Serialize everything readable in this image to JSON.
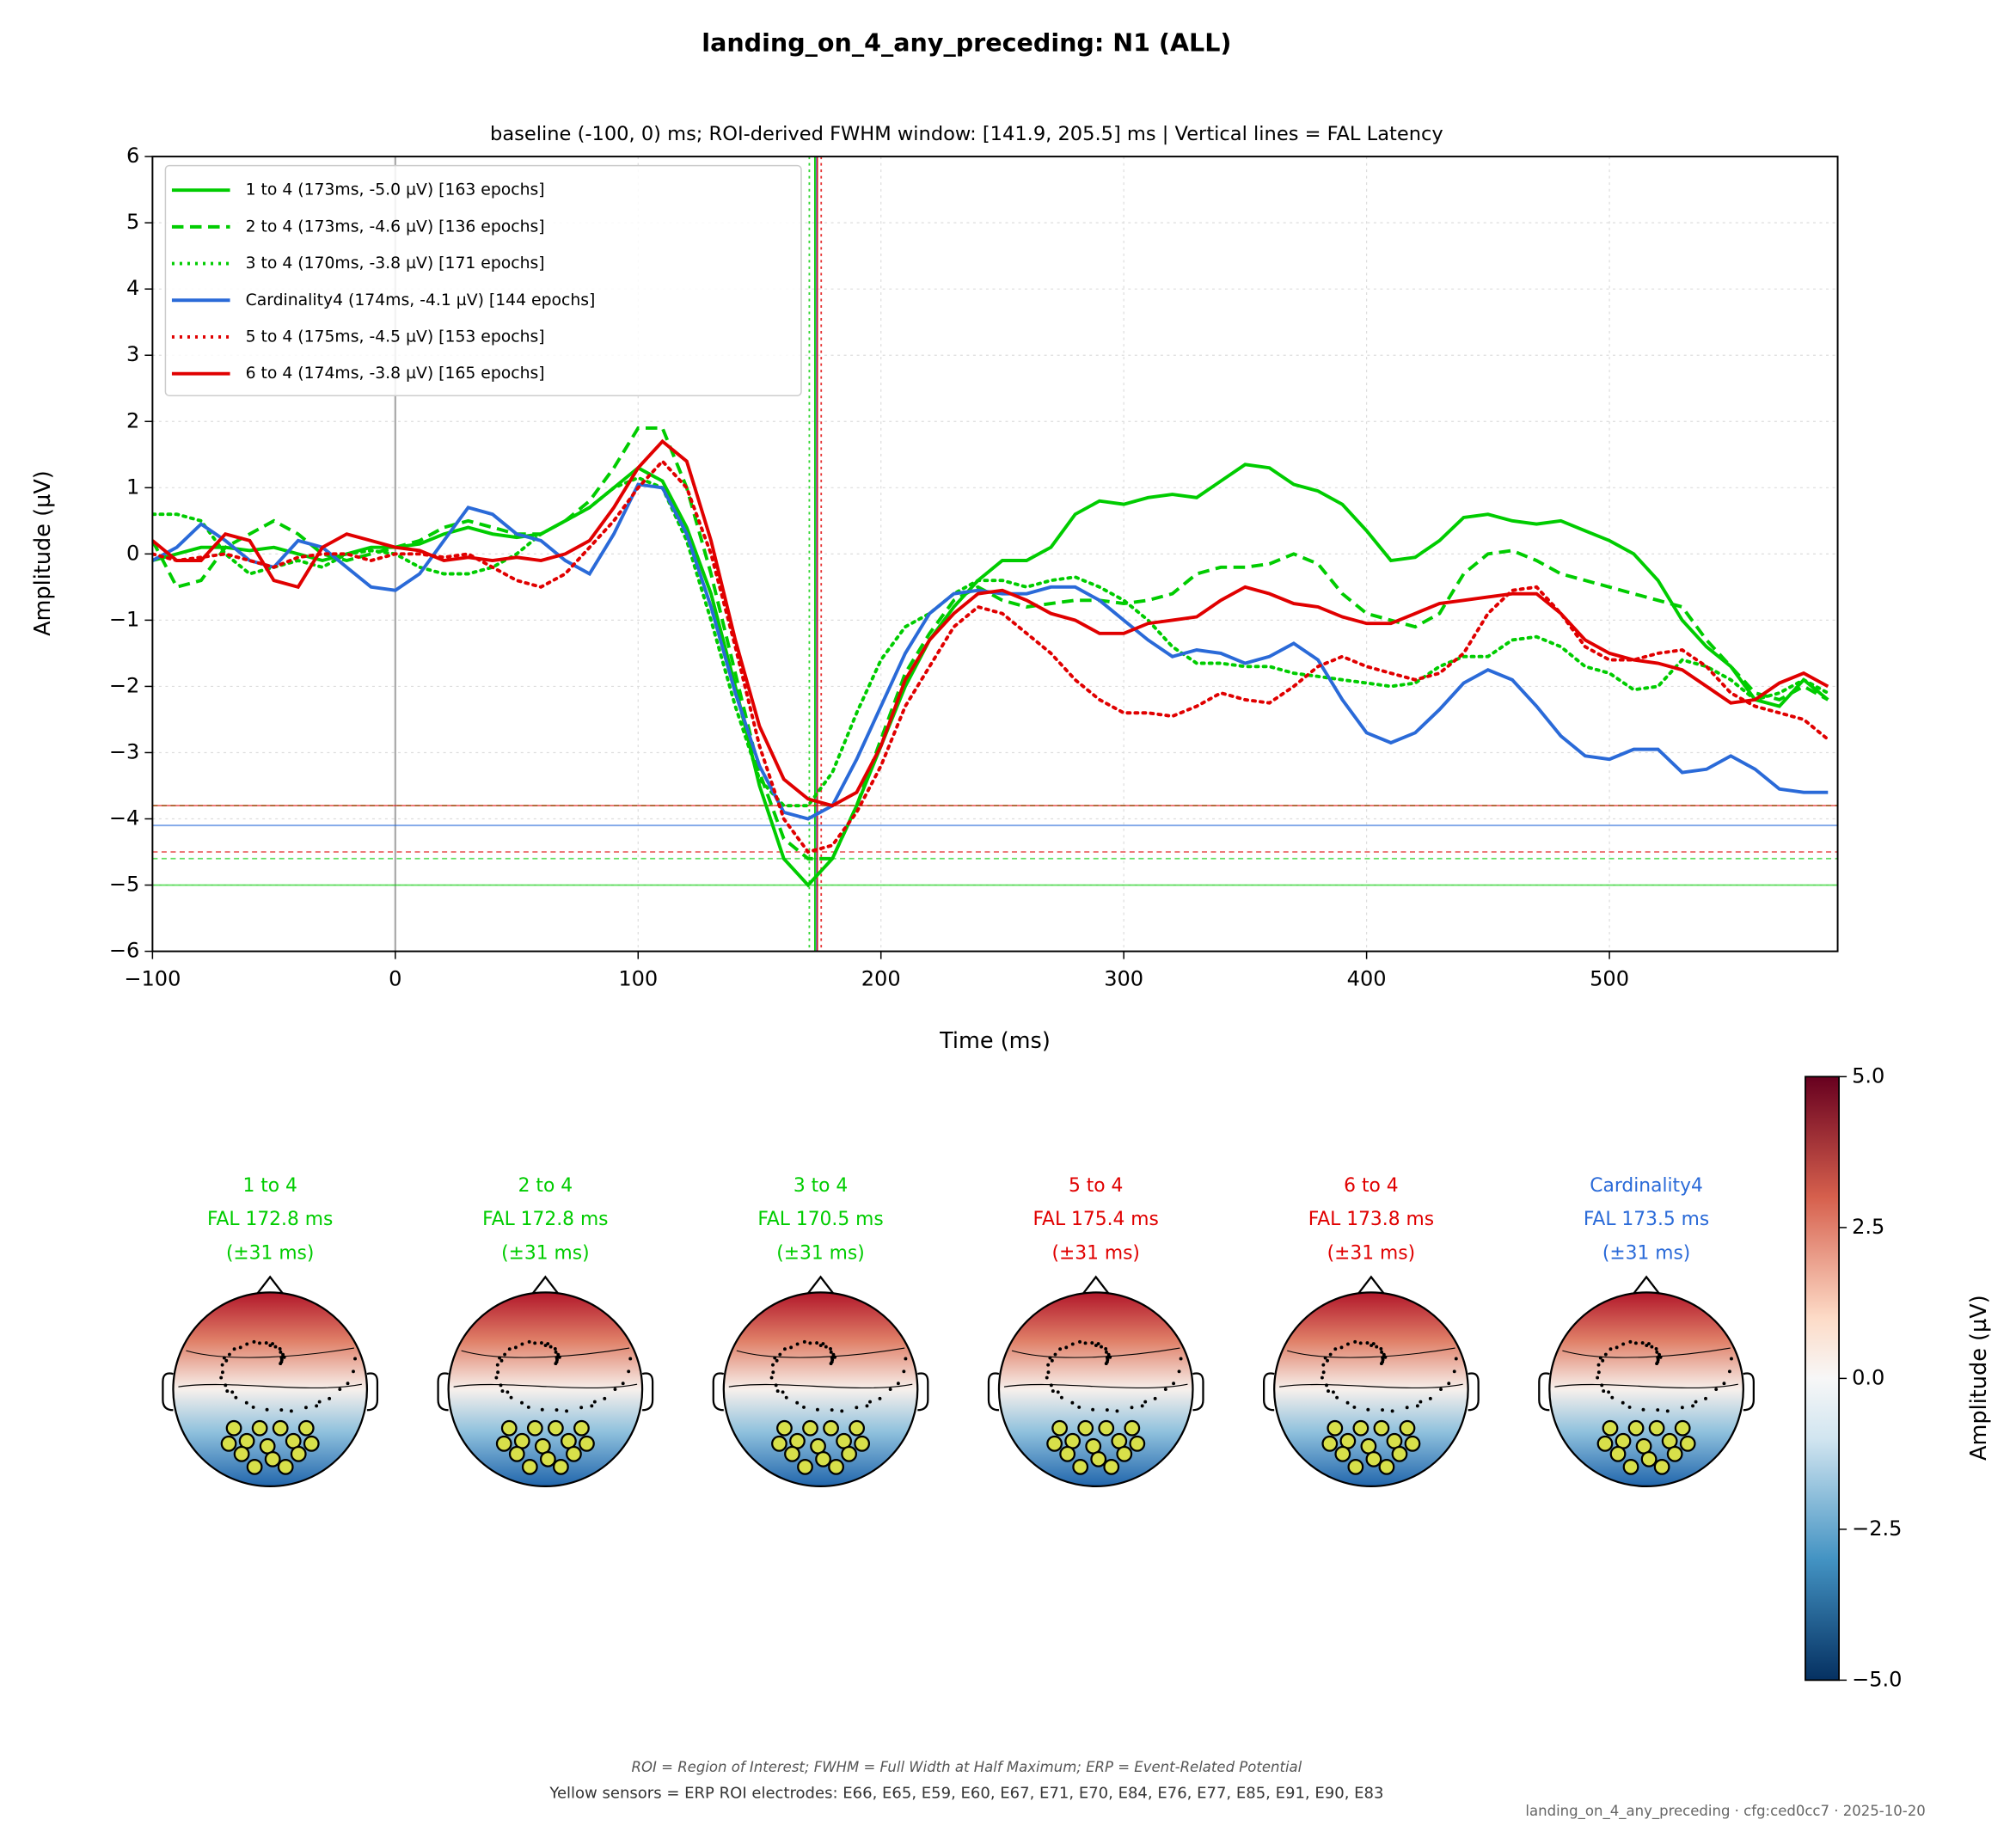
{
  "chart_data": {
    "type": "line",
    "title": "landing_on_4_any_preceding: N1 (ALL)",
    "subtitle": "baseline (-100, 0) ms; ROI-derived FWHM window: [141.9, 205.5] ms | Vertical lines = FAL Latency",
    "xlabel": "Time (ms)",
    "ylabel": "Amplitude (µV)",
    "xlim": [
      -100,
      594
    ],
    "ylim": [
      -6,
      6
    ],
    "xticks": [
      {
        "value": -100,
        "label": "−100"
      },
      0,
      100,
      200,
      300,
      400,
      500
    ],
    "yticks": [
      {
        "value": -6,
        "label": "−6"
      },
      {
        "value": -5,
        "label": "−5"
      },
      {
        "value": -4,
        "label": "−4"
      },
      {
        "value": -3,
        "label": "−3"
      },
      {
        "value": -2,
        "label": "−2"
      },
      {
        "value": -1,
        "label": "−1"
      },
      0,
      1,
      2,
      3,
      4,
      5,
      6
    ],
    "grid": true,
    "legend": "upper left",
    "x": [
      -100,
      -90,
      -80,
      -70,
      -60,
      -50,
      -40,
      -30,
      -20,
      -10,
      0,
      10,
      20,
      30,
      40,
      50,
      60,
      70,
      80,
      90,
      100,
      110,
      120,
      130,
      140,
      150,
      160,
      170,
      180,
      190,
      200,
      210,
      220,
      230,
      240,
      250,
      260,
      270,
      280,
      290,
      300,
      310,
      320,
      330,
      340,
      350,
      360,
      370,
      380,
      390,
      400,
      410,
      420,
      430,
      440,
      450,
      460,
      470,
      480,
      490,
      500,
      510,
      520,
      530,
      540,
      550,
      560,
      570,
      580,
      590
    ],
    "series": [
      {
        "name": "1 to 4 (173ms, -5.0 µV) [163 epochs]",
        "color": "#00cc00",
        "dash": "solid",
        "latency": 172.8,
        "peak": -5.0,
        "values": [
          -0.1,
          0.0,
          0.1,
          0.1,
          0.05,
          0.1,
          0.0,
          -0.1,
          0.0,
          0.1,
          0.1,
          0.15,
          0.3,
          0.4,
          0.3,
          0.25,
          0.3,
          0.5,
          0.7,
          1.0,
          1.3,
          1.1,
          0.4,
          -0.6,
          -2.0,
          -3.5,
          -4.6,
          -5.0,
          -4.6,
          -3.8,
          -2.9,
          -2.0,
          -1.3,
          -0.8,
          -0.4,
          -0.1,
          -0.1,
          0.1,
          0.6,
          0.8,
          0.75,
          0.85,
          0.9,
          0.85,
          1.1,
          1.35,
          1.3,
          1.05,
          0.95,
          0.75,
          0.35,
          -0.1,
          -0.05,
          0.2,
          0.55,
          0.6,
          0.5,
          0.45,
          0.5,
          0.35,
          0.2,
          0.0,
          -0.4,
          -1.0,
          -1.4,
          -1.7,
          -2.2,
          -2.3,
          -1.9,
          -2.2
        ]
      },
      {
        "name": "2 to 4 (173ms, -4.6 µV) [136 epochs]",
        "color": "#00cc00",
        "dash": "dashed",
        "latency": 172.8,
        "peak": -4.6,
        "values": [
          0.2,
          -0.5,
          -0.4,
          0.1,
          0.3,
          0.5,
          0.3,
          0.0,
          -0.1,
          0.0,
          0.1,
          0.2,
          0.4,
          0.5,
          0.4,
          0.3,
          0.3,
          0.5,
          0.8,
          1.3,
          1.9,
          1.9,
          1.0,
          -0.3,
          -1.8,
          -3.3,
          -4.3,
          -4.6,
          -4.6,
          -3.8,
          -2.8,
          -1.8,
          -1.2,
          -0.7,
          -0.5,
          -0.7,
          -0.8,
          -0.75,
          -0.7,
          -0.7,
          -0.75,
          -0.7,
          -0.6,
          -0.3,
          -0.2,
          -0.2,
          -0.15,
          0.0,
          -0.15,
          -0.6,
          -0.9,
          -1.0,
          -1.1,
          -0.9,
          -0.3,
          0.0,
          0.05,
          -0.1,
          -0.3,
          -0.4,
          -0.5,
          -0.6,
          -0.7,
          -0.8,
          -1.3,
          -1.7,
          -2.1,
          -2.2,
          -2.0,
          -2.2
        ]
      },
      {
        "name": "3 to 4 (170ms, -3.8 µV) [171 epochs]",
        "color": "#00cc00",
        "dash": "dotted",
        "latency": 170.5,
        "peak": -3.8,
        "values": [
          0.6,
          0.6,
          0.5,
          0.0,
          -0.3,
          -0.2,
          -0.1,
          -0.2,
          0.0,
          0.05,
          0.0,
          -0.2,
          -0.3,
          -0.3,
          -0.2,
          0.0,
          0.3,
          0.5,
          0.7,
          1.0,
          1.15,
          1.0,
          0.2,
          -1.0,
          -2.3,
          -3.4,
          -3.8,
          -3.8,
          -3.3,
          -2.4,
          -1.6,
          -1.1,
          -0.9,
          -0.6,
          -0.4,
          -0.4,
          -0.5,
          -0.4,
          -0.35,
          -0.5,
          -0.7,
          -1.0,
          -1.4,
          -1.65,
          -1.65,
          -1.7,
          -1.7,
          -1.8,
          -1.85,
          -1.9,
          -1.95,
          -2.0,
          -1.95,
          -1.7,
          -1.55,
          -1.55,
          -1.3,
          -1.25,
          -1.4,
          -1.7,
          -1.8,
          -2.05,
          -2.0,
          -1.6,
          -1.7,
          -1.9,
          -2.2,
          -2.1,
          -1.9,
          -2.1
        ]
      },
      {
        "name": "Cardinality4 (174ms, -4.1 µV) [144 epochs]",
        "color": "#2a6ad8",
        "dash": "solid",
        "latency": 173.5,
        "peak": -4.1,
        "values": [
          -0.1,
          0.1,
          0.45,
          0.2,
          -0.1,
          -0.2,
          0.2,
          0.1,
          -0.2,
          -0.5,
          -0.55,
          -0.3,
          0.2,
          0.7,
          0.6,
          0.3,
          0.2,
          -0.1,
          -0.3,
          0.3,
          1.05,
          1.0,
          0.3,
          -0.8,
          -2.1,
          -3.2,
          -3.9,
          -4.0,
          -3.8,
          -3.1,
          -2.3,
          -1.5,
          -0.9,
          -0.6,
          -0.55,
          -0.6,
          -0.6,
          -0.5,
          -0.5,
          -0.7,
          -1.0,
          -1.3,
          -1.55,
          -1.45,
          -1.5,
          -1.65,
          -1.55,
          -1.35,
          -1.6,
          -2.2,
          -2.7,
          -2.85,
          -2.7,
          -2.35,
          -1.95,
          -1.75,
          -1.9,
          -2.3,
          -2.75,
          -3.05,
          -3.1,
          -2.95,
          -2.95,
          -3.3,
          -3.25,
          -3.05,
          -3.25,
          -3.55,
          -3.6,
          -3.6
        ]
      },
      {
        "name": "5 to 4 (175ms, -4.5 µV) [153 epochs]",
        "color": "#e00000",
        "dash": "dotted",
        "latency": 175.4,
        "peak": -4.5,
        "values": [
          0.0,
          -0.1,
          -0.05,
          0.0,
          -0.1,
          -0.2,
          -0.05,
          0.0,
          0.0,
          -0.1,
          0.0,
          0.0,
          -0.05,
          0.0,
          -0.2,
          -0.4,
          -0.5,
          -0.3,
          0.1,
          0.5,
          1.0,
          1.4,
          1.0,
          0.0,
          -1.4,
          -2.9,
          -4.0,
          -4.5,
          -4.4,
          -3.9,
          -3.2,
          -2.3,
          -1.7,
          -1.1,
          -0.8,
          -0.9,
          -1.2,
          -1.5,
          -1.9,
          -2.2,
          -2.4,
          -2.4,
          -2.45,
          -2.3,
          -2.1,
          -2.2,
          -2.25,
          -2.0,
          -1.7,
          -1.55,
          -1.7,
          -1.8,
          -1.9,
          -1.8,
          -1.5,
          -0.9,
          -0.55,
          -0.5,
          -0.9,
          -1.4,
          -1.6,
          -1.6,
          -1.5,
          -1.45,
          -1.7,
          -2.1,
          -2.3,
          -2.4,
          -2.5,
          -2.8
        ]
      },
      {
        "name": "6 to 4 (174ms, -3.8 µV) [165 epochs]",
        "color": "#e00000",
        "dash": "solid",
        "latency": 173.8,
        "peak": -3.8,
        "values": [
          0.2,
          -0.1,
          -0.1,
          0.3,
          0.2,
          -0.4,
          -0.5,
          0.1,
          0.3,
          0.2,
          0.1,
          0.05,
          -0.1,
          -0.05,
          -0.1,
          -0.05,
          -0.1,
          0.0,
          0.2,
          0.7,
          1.3,
          1.7,
          1.4,
          0.2,
          -1.3,
          -2.6,
          -3.4,
          -3.7,
          -3.8,
          -3.6,
          -2.9,
          -1.9,
          -1.3,
          -0.9,
          -0.6,
          -0.55,
          -0.7,
          -0.9,
          -1.0,
          -1.2,
          -1.2,
          -1.05,
          -1.0,
          -0.95,
          -0.7,
          -0.5,
          -0.6,
          -0.75,
          -0.8,
          -0.95,
          -1.05,
          -1.05,
          -0.9,
          -0.75,
          -0.7,
          -0.65,
          -0.6,
          -0.6,
          -0.9,
          -1.3,
          -1.5,
          -1.6,
          -1.65,
          -1.75,
          -2.0,
          -2.25,
          -2.2,
          -1.95,
          -1.8,
          -2.0
        ]
      }
    ],
    "topomaps": [
      {
        "label": "1 to 4",
        "fal": "FAL 172.8 ms",
        "window": "(±31 ms)",
        "color": "#00cc00"
      },
      {
        "label": "2 to 4",
        "fal": "FAL 172.8 ms",
        "window": "(±31 ms)",
        "color": "#00cc00"
      },
      {
        "label": "3 to 4",
        "fal": "FAL 170.5 ms",
        "window": "(±31 ms)",
        "color": "#00cc00"
      },
      {
        "label": "5 to 4",
        "fal": "FAL 175.4 ms",
        "window": "(±31 ms)",
        "color": "#e00000"
      },
      {
        "label": "6 to 4",
        "fal": "FAL 173.8 ms",
        "window": "(±31 ms)",
        "color": "#e00000"
      },
      {
        "label": "Cardinality4",
        "fal": "FAL 173.5 ms",
        "window": "(±31 ms)",
        "color": "#2a6ad8"
      }
    ],
    "colorbar": {
      "label": "Amplitude (µV)",
      "lim": [
        -5,
        5
      ],
      "ticks": [
        {
          "value": 5,
          "label": "5.0"
        },
        {
          "value": 2.5,
          "label": "2.5"
        },
        {
          "value": 0,
          "label": "0.0"
        },
        {
          "value": -2.5,
          "label": "−2.5"
        },
        {
          "value": -5,
          "label": "−5.0"
        }
      ]
    },
    "note": "ROI = Region of Interest; FWHM = Full Width at Half Maximum; ERP = Event-Related Potential",
    "sensors_note": "Yellow sensors = ERP ROI electrodes: E66, E65, E59, E60, E67, E71, E70, E84, E76, E77, E85, E91, E90, E83",
    "footer": "landing_on_4_any_preceding · cfg:ced0cc7 · 2025-10-20"
  }
}
